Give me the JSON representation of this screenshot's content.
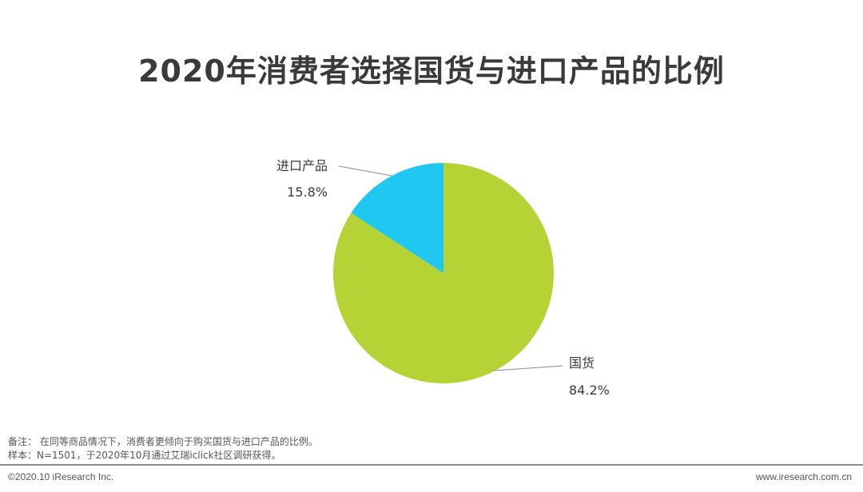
{
  "title": "2020年消费者选择国货与进口产品的比例",
  "chart_data": {
    "type": "pie",
    "title": "2020年消费者选择国货与进口产品的比例",
    "slices": [
      {
        "label": "国货",
        "value": 84.2,
        "display": "84.2%",
        "color": "#b5d334"
      },
      {
        "label": "进口产品",
        "value": 15.8,
        "display": "15.8%",
        "color": "#1ec8f0"
      }
    ]
  },
  "notes": {
    "line1": "备注： 在同等商品情况下，消费者更倾向于购买国货与进口产品的比例。",
    "line2": "样本：N=1501，于2020年10月通过艾瑞iclick社区调研获得。"
  },
  "footer": {
    "copyright": "©2020.10 iResearch Inc.",
    "website": "www.iresearch.com.cn"
  }
}
